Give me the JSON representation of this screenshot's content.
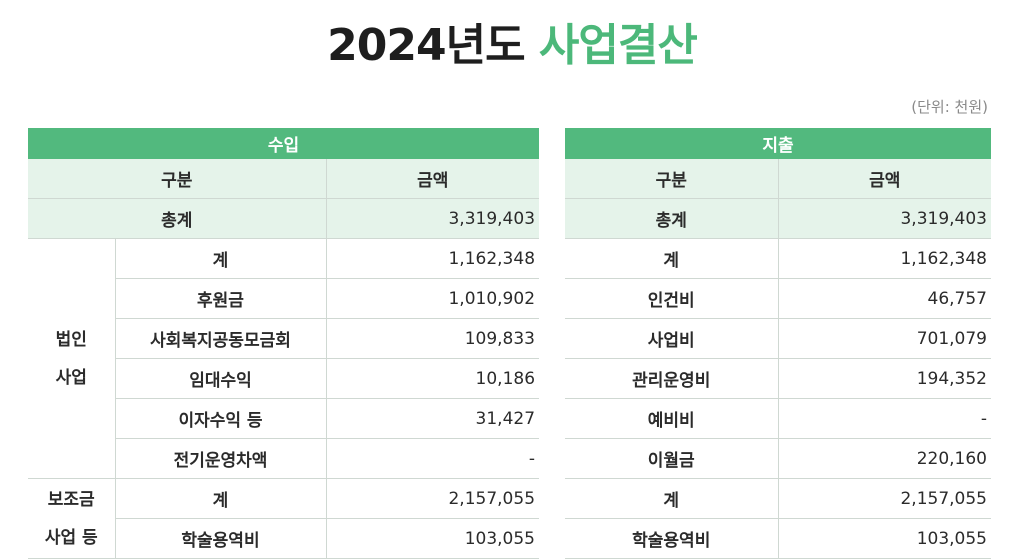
{
  "title": {
    "main": "2024년도",
    "accent": "사업결산"
  },
  "unit_note": "(단위: 천원)",
  "income": {
    "header": "수입",
    "col_category": "구분",
    "col_amount": "금액",
    "total_label": "총계",
    "total_amount": "3,319,403",
    "groups": [
      {
        "label_line1": "법인",
        "label_line2": "사업",
        "rows": [
          {
            "item": "계",
            "amount": "1,162,348"
          },
          {
            "item": "후원금",
            "amount": "1,010,902"
          },
          {
            "item": "사회복지공동모금회",
            "amount": "109,833"
          },
          {
            "item": "임대수익",
            "amount": "10,186"
          },
          {
            "item": "이자수익 등",
            "amount": "31,427"
          },
          {
            "item": "전기운영차액",
            "amount": "-"
          }
        ]
      },
      {
        "label_line1": "보조금",
        "label_line2": "사업 등",
        "rows": [
          {
            "item": "계",
            "amount": "2,157,055"
          },
          {
            "item": "학술용역비",
            "amount": "103,055"
          }
        ]
      }
    ]
  },
  "expense": {
    "header": "지출",
    "col_category": "구분",
    "col_amount": "금액",
    "total_label": "총계",
    "total_amount": "3,319,403",
    "rows": [
      {
        "item": "계",
        "amount": "1,162,348"
      },
      {
        "item": "인건비",
        "amount": "46,757"
      },
      {
        "item": "사업비",
        "amount": "701,079"
      },
      {
        "item": "관리운영비",
        "amount": "194,352"
      },
      {
        "item": "예비비",
        "amount": "-"
      },
      {
        "item": "이월금",
        "amount": "220,160"
      },
      {
        "item": "계",
        "amount": "2,157,055"
      },
      {
        "item": "학술용역비",
        "amount": "103,055"
      }
    ]
  },
  "colors": {
    "accent": "#4cb87a",
    "header_bg": "#52b97e",
    "subheader_bg": "#e5f3ea"
  }
}
